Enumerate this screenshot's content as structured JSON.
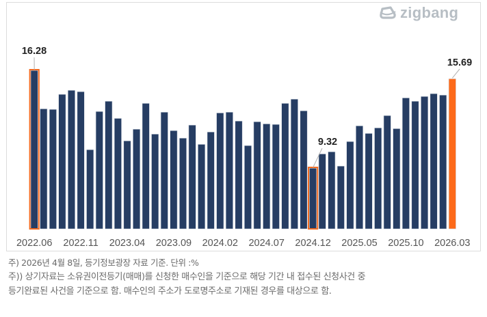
{
  "brand": {
    "logo_text": "zigbang",
    "logo_color": "#b7bec4"
  },
  "colors": {
    "bar": "#263d63",
    "highlight": "#fd6a1a",
    "highlight_outline": "#f26b21",
    "leader": "#b0b0b0"
  },
  "notes": [
    "주) 2026년 4월 8일, 등기정보광장 자료 기준. 단위 :%",
    "주)) 상기자료는 소유권이전등기(매매)를 신청한 매수인을 기준으로 해당 기간 내 접수된 신청사건 중",
    "등기완료된 사건을 기준으로 함. 매수인의 주소가 도로명주소로 기재된 경우를 대상으로 함."
  ],
  "chart_data": {
    "type": "bar",
    "title": "",
    "xlabel": "",
    "ylabel": "",
    "unit": "%",
    "ylim": [
      5,
      17
    ],
    "grid": false,
    "legend": "none",
    "categories": [
      "2022.06",
      "2022.07",
      "2022.08",
      "2022.09",
      "2022.10",
      "2022.11",
      "2022.12",
      "2023.01",
      "2023.02",
      "2023.03",
      "2023.04",
      "2023.05",
      "2023.06",
      "2023.07",
      "2023.08",
      "2023.09",
      "2023.10",
      "2023.11",
      "2023.12",
      "2024.01",
      "2024.02",
      "2024.03",
      "2024.04",
      "2024.05",
      "2024.06",
      "2024.07",
      "2024.08",
      "2024.09",
      "2024.10",
      "2024.11",
      "2024.12",
      "2025.01",
      "2025.02",
      "2025.03",
      "2025.04",
      "2025.05",
      "2025.06",
      "2025.07",
      "2025.08",
      "2025.09",
      "2025.10",
      "2025.11",
      "2025.12",
      "2026.01",
      "2026.02",
      "2026.03"
    ],
    "values": [
      16.28,
      13.55,
      13.51,
      14.58,
      14.87,
      14.77,
      10.64,
      13.36,
      14.09,
      12.87,
      11.27,
      12.1,
      13.94,
      11.75,
      13.31,
      12.0,
      11.46,
      12.39,
      11.02,
      11.9,
      13.26,
      13.31,
      12.68,
      10.93,
      12.63,
      12.48,
      12.44,
      13.94,
      14.24,
      13.41,
      9.32,
      10.34,
      10.49,
      9.47,
      11.22,
      12.34,
      11.8,
      12.19,
      13.07,
      12.14,
      14.33,
      14.09,
      14.43,
      14.63,
      14.53,
      15.69
    ],
    "tick_labels": [
      "2022.06",
      "2022.11",
      "2023.04",
      "2023.09",
      "2024.02",
      "2024.07",
      "2024.12",
      "2025.05",
      "2025.10",
      "2026.03"
    ],
    "tick_every": 5,
    "annotations": [
      {
        "index": 0,
        "label": "16.28",
        "style": "outline"
      },
      {
        "index": 30,
        "label": "9.32",
        "style": "outline"
      },
      {
        "index": 45,
        "label": "15.69",
        "style": "fill"
      }
    ]
  }
}
